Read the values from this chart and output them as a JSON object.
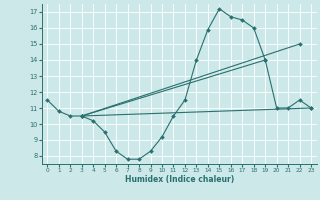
{
  "title": "",
  "xlabel": "Humidex (Indice chaleur)",
  "xlim": [
    -0.5,
    23.5
  ],
  "ylim": [
    7.5,
    17.5
  ],
  "xticks": [
    0,
    1,
    2,
    3,
    4,
    5,
    6,
    7,
    8,
    9,
    10,
    11,
    12,
    13,
    14,
    15,
    16,
    17,
    18,
    19,
    20,
    21,
    22,
    23
  ],
  "yticks": [
    8,
    9,
    10,
    11,
    12,
    13,
    14,
    15,
    16,
    17
  ],
  "bg_color": "#cce8e8",
  "grid_color": "#b0d4d4",
  "line_color": "#2a7070",
  "curve_x": [
    0,
    1,
    2,
    3,
    4,
    5,
    6,
    7,
    8,
    9,
    10,
    11,
    12,
    13,
    14,
    15,
    16,
    17,
    18,
    19,
    20,
    21,
    22,
    23
  ],
  "curve_y": [
    11.5,
    10.8,
    10.5,
    10.5,
    10.2,
    9.5,
    8.3,
    7.8,
    7.8,
    8.3,
    9.2,
    10.5,
    11.5,
    14.0,
    15.9,
    17.2,
    16.7,
    16.5,
    16.0,
    14.0,
    11.0,
    11.0,
    11.5,
    11.0
  ],
  "straight_lines": [
    {
      "x": [
        3,
        23
      ],
      "y": [
        10.5,
        11.0
      ]
    },
    {
      "x": [
        3,
        19
      ],
      "y": [
        10.5,
        14.0
      ]
    },
    {
      "x": [
        3,
        22
      ],
      "y": [
        10.5,
        15.0
      ]
    }
  ]
}
